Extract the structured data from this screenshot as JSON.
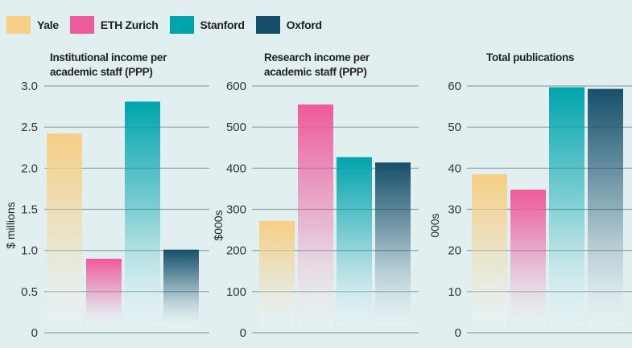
{
  "legend": [
    {
      "name": "Yale",
      "color": "#f7cf86"
    },
    {
      "name": "ETH Zurich",
      "color": "#ee5b9a"
    },
    {
      "name": "Stanford",
      "color": "#00a4ad"
    },
    {
      "name": "Oxford",
      "color": "#164f6a"
    }
  ],
  "chart_data": [
    {
      "type": "bar",
      "title": [
        "Institutional income per",
        "academic staff (PPP)"
      ],
      "ylabel": "$ millions",
      "categories": [
        "Yale",
        "ETH Zurich",
        "Stanford",
        "Oxford"
      ],
      "values": [
        2.42,
        0.9,
        2.81,
        1.01
      ],
      "ylim": [
        0,
        3
      ],
      "yticks": [
        "0",
        "0.5",
        "1.0",
        "1.5",
        "2.0",
        "2.5",
        "3.0"
      ],
      "ytick_values": [
        0,
        0.5,
        1,
        1.5,
        2,
        2.5,
        3
      ],
      "grid": true
    },
    {
      "type": "bar",
      "title": [
        "Research income per",
        "academic staff (PPP)"
      ],
      "ylabel": "$000s",
      "categories": [
        "Yale",
        "ETH Zurich",
        "Stanford",
        "Oxford"
      ],
      "values": [
        272,
        555,
        427,
        414
      ],
      "ylim": [
        0,
        600
      ],
      "yticks": [
        "0",
        "100",
        "200",
        "300",
        "400",
        "500",
        "600"
      ],
      "ytick_values": [
        0,
        100,
        200,
        300,
        400,
        500,
        600
      ],
      "grid": true
    },
    {
      "type": "bar",
      "title": [
        "Total publications"
      ],
      "ylabel": "000s",
      "categories": [
        "Yale",
        "ETH Zurich",
        "Stanford",
        "Oxford"
      ],
      "values": [
        38.5,
        34.8,
        59.7,
        59.3
      ],
      "ylim": [
        0,
        60
      ],
      "yticks": [
        "0",
        "10",
        "20",
        "30",
        "40",
        "50",
        "60"
      ],
      "ytick_values": [
        0,
        10,
        20,
        30,
        40,
        50,
        60
      ],
      "grid": true
    }
  ]
}
